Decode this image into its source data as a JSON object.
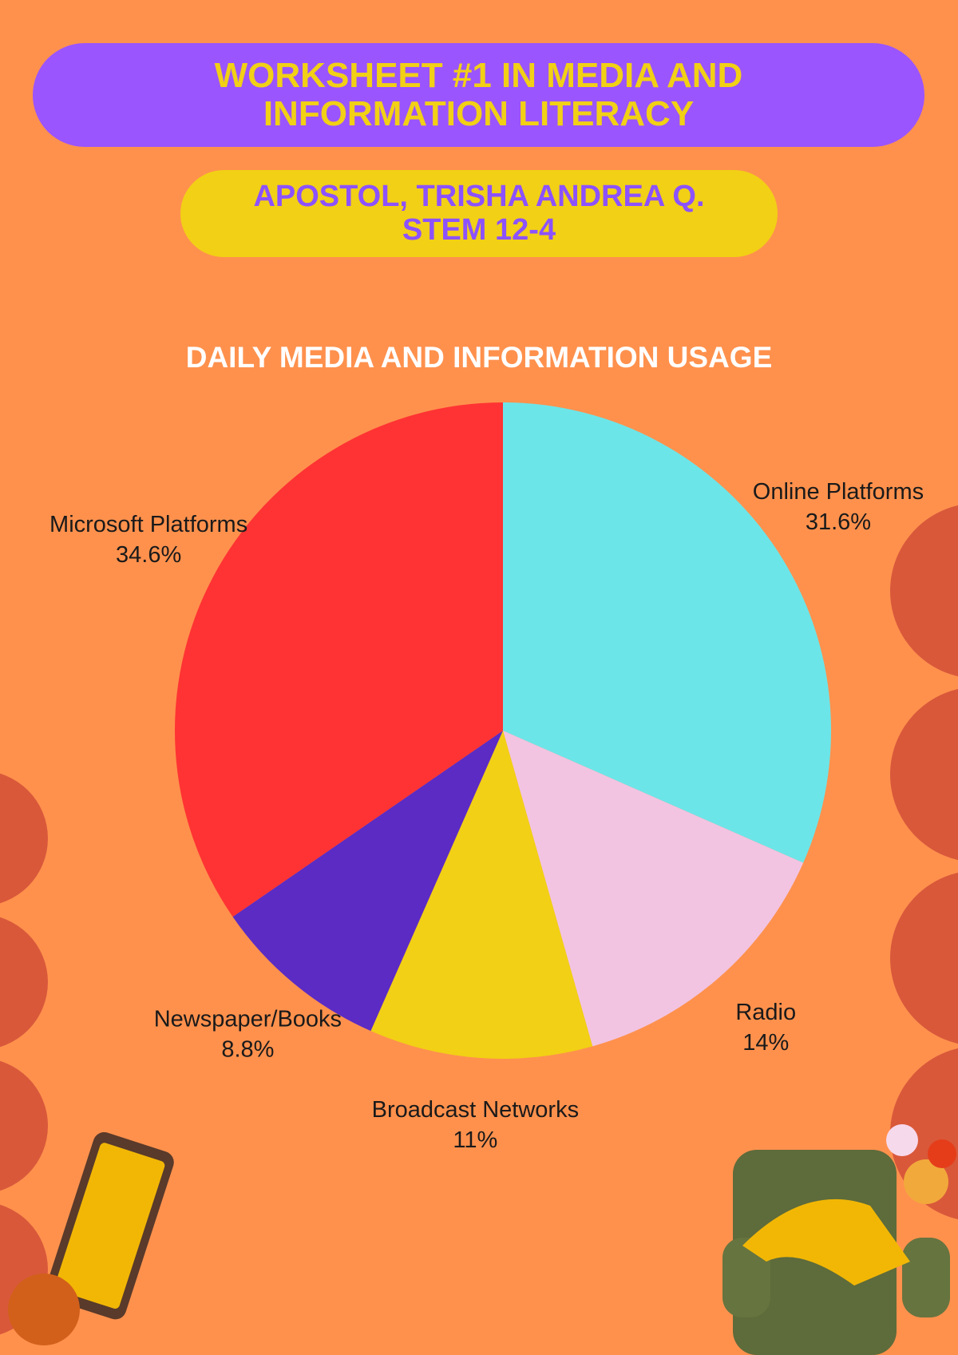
{
  "header": {
    "title": "WORKSHEET #1 IN MEDIA AND INFORMATION LITERACY",
    "name": "APOSTOL, TRISHA ANDREA Q.",
    "section": "STEM 12-4"
  },
  "chart_data": {
    "type": "pie",
    "title": "DAILY MEDIA AND INFORMATION USAGE",
    "categories": [
      "Online Platforms",
      "Radio",
      "Broadcast Networks",
      "Newspaper/Books",
      "Microsoft Platforms"
    ],
    "values": [
      31.6,
      14,
      11,
      8.8,
      34.6
    ],
    "value_labels": [
      "31.6%",
      "14%",
      "11%",
      "8.8%",
      "34.6%"
    ],
    "colors": [
      "#6ce5e8",
      "#f2c4e2",
      "#f2d015",
      "#5c2bc4",
      "#ff3333"
    ]
  }
}
